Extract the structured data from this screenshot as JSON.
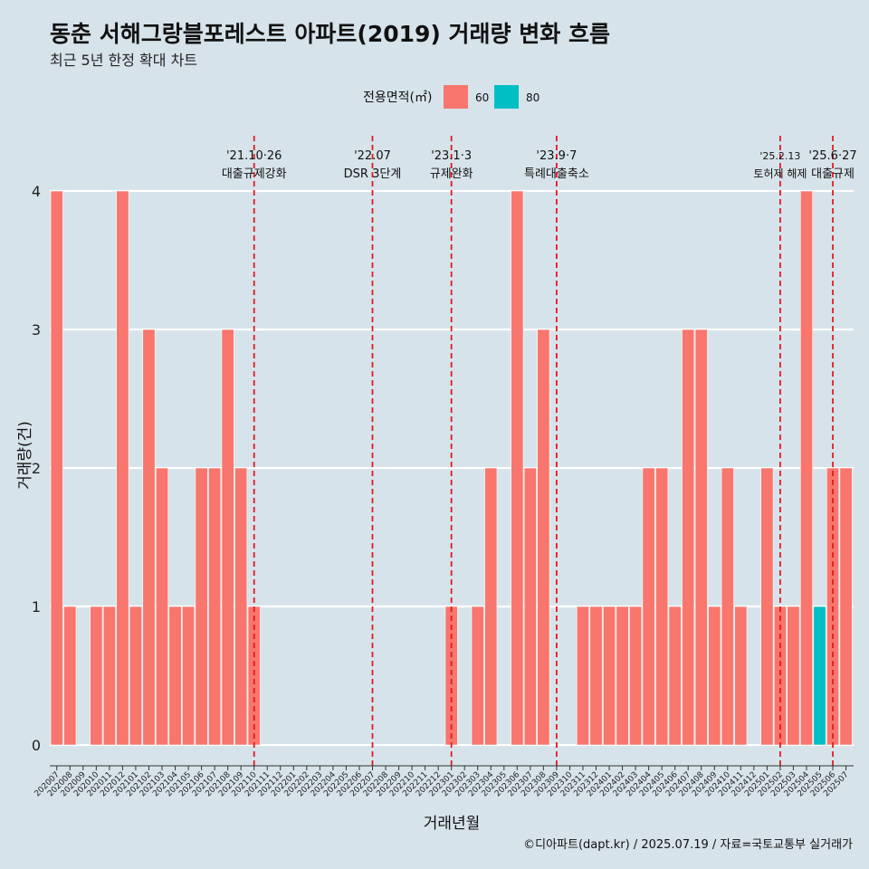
{
  "title": "동춘 서해그랑블포레스트 아파트(2019) 거래량 변화 흐름",
  "subtitle": "최근 5년 한정 확대 차트",
  "caption": "©디아파트(dapt.kr) / 2025.07.19 / 자료=국토교통부 실거래가",
  "colors": {
    "background": "#d6e3ea",
    "series_60": "#f8766d",
    "series_80": "#00bfc4",
    "event_line": "#e41a1c",
    "grid": "#ffffff"
  },
  "chart_data": {
    "type": "bar",
    "stacked": true,
    "xlabel": "거래년월",
    "ylabel": "거래량(건)",
    "ylim": [
      0,
      4
    ],
    "yticks": [
      0,
      1,
      2,
      3,
      4
    ],
    "legend": {
      "title": "전용면적(㎡)",
      "position": "top",
      "entries": [
        "60",
        "80"
      ]
    },
    "categories": [
      "202007",
      "202008",
      "202009",
      "202010",
      "202011",
      "202012",
      "202101",
      "202102",
      "202103",
      "202104",
      "202105",
      "202106",
      "202107",
      "202108",
      "202109",
      "202110",
      "202111",
      "202112",
      "202201",
      "202202",
      "202203",
      "202204",
      "202205",
      "202206",
      "202207",
      "202208",
      "202209",
      "202210",
      "202211",
      "202212",
      "202301",
      "202302",
      "202303",
      "202304",
      "202305",
      "202306",
      "202307",
      "202308",
      "202309",
      "202310",
      "202311",
      "202312",
      "202401",
      "202402",
      "202403",
      "202404",
      "202405",
      "202406",
      "202407",
      "202408",
      "202409",
      "202410",
      "202411",
      "202412",
      "202501",
      "202502",
      "202503",
      "202504",
      "202505",
      "202506",
      "202507"
    ],
    "series": [
      {
        "name": "60",
        "color": "#f8766d",
        "values": [
          4,
          1,
          0,
          1,
          1,
          4,
          1,
          3,
          2,
          1,
          1,
          2,
          2,
          3,
          2,
          1,
          0,
          0,
          0,
          0,
          0,
          0,
          0,
          0,
          0,
          0,
          0,
          0,
          0,
          0,
          1,
          0,
          1,
          2,
          0,
          4,
          2,
          3,
          0,
          0,
          1,
          1,
          1,
          1,
          1,
          2,
          2,
          1,
          3,
          3,
          1,
          2,
          1,
          0,
          2,
          1,
          1,
          4,
          0,
          2,
          2
        ]
      },
      {
        "name": "80",
        "color": "#00bfc4",
        "values": [
          0,
          0,
          0,
          0,
          0,
          0,
          0,
          0,
          0,
          0,
          0,
          0,
          0,
          0,
          0,
          0,
          0,
          0,
          0,
          0,
          0,
          0,
          0,
          0,
          0,
          0,
          0,
          0,
          0,
          0,
          0,
          0,
          0,
          0,
          0,
          0,
          0,
          0,
          0,
          0,
          0,
          0,
          0,
          0,
          0,
          0,
          0,
          0,
          0,
          0,
          0,
          0,
          0,
          0,
          0,
          0,
          0,
          0,
          1,
          0,
          0
        ]
      }
    ],
    "events": [
      {
        "month": "202110",
        "date": "'21.10·26",
        "label": "대출규제강화"
      },
      {
        "month": "202207",
        "date": "'22.07",
        "label": "DSR 3단계"
      },
      {
        "month": "202301",
        "date": "'23.1·3",
        "label": "규제완화"
      },
      {
        "month": "202309",
        "date": "'23.9·7",
        "label": "특례대출축소"
      },
      {
        "month": "202502",
        "date": "'25.2.13",
        "label": "토허제 해제"
      },
      {
        "month": "202506",
        "date": "'25.6·27",
        "label": "대출규제"
      }
    ]
  }
}
